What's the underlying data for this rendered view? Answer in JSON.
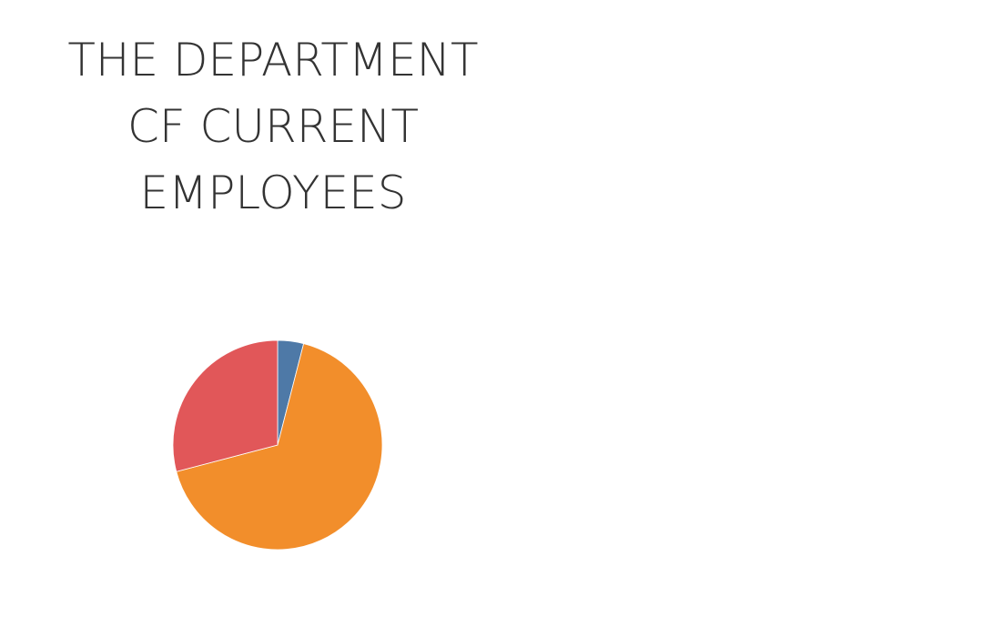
{
  "chart_data": {
    "type": "pie",
    "title_lines": [
      "THE DEPARTMENT",
      "CF CURRENT",
      "EMPLOYEES"
    ],
    "slices": [
      {
        "value": 4.0,
        "color": "#4e79a7"
      },
      {
        "value": 66.9,
        "color": "#f28e2b"
      },
      {
        "value": 29.1,
        "color": "#e15759"
      }
    ],
    "start_angle_deg": 0,
    "direction": "clockwise"
  }
}
